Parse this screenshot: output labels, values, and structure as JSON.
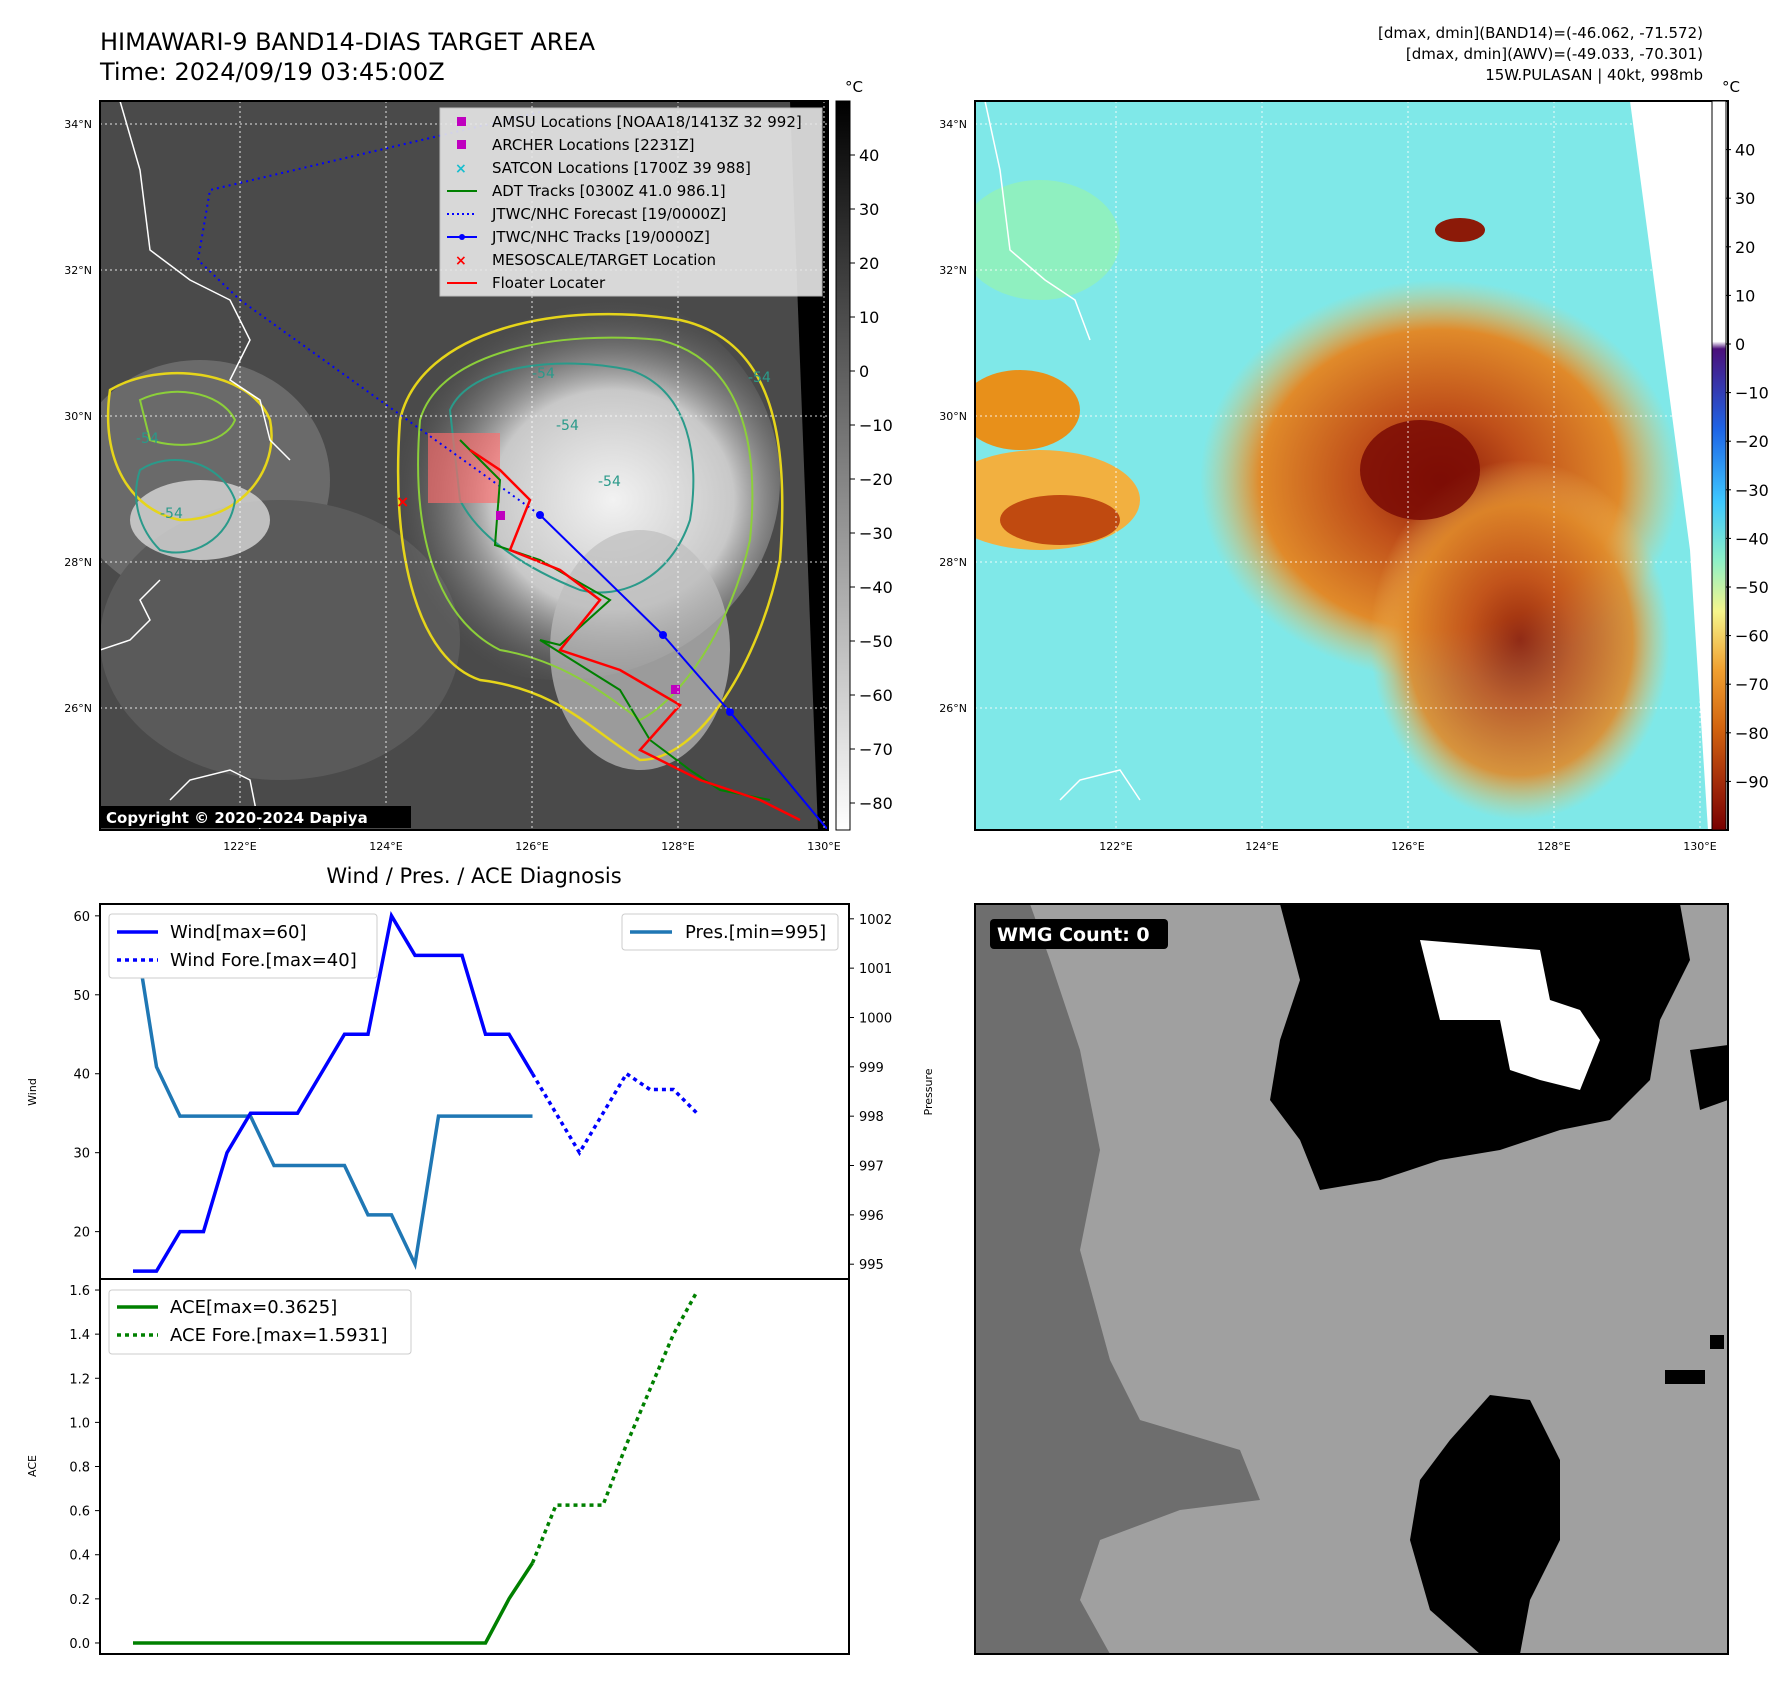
{
  "header": {
    "title": "HIMAWARI-9 BAND14-DIAS TARGET AREA",
    "time": "Time: 2024/09/19 03:45:00Z",
    "dmax_band14": "[dmax, dmin](BAND14)=(-46.062, -71.572)",
    "dmax_awv": "[dmax, dmin](AWV)=(-49.033, -70.301)",
    "storm": "15W.PULASAN | 40kt, 998mb"
  },
  "ir_panel": {
    "copyright": "Copyright © 2020-2024 Dapiya",
    "unit": "°C",
    "colorbar_ticks": [
      "40",
      "30",
      "20",
      "10",
      "0",
      "−10",
      "−20",
      "−30",
      "−40",
      "−50",
      "−60",
      "−70",
      "−80"
    ],
    "lat_labels": [
      "34°N",
      "32°N",
      "30°N",
      "28°N",
      "26°N"
    ],
    "lon_labels": [
      "122°E",
      "124°E",
      "126°E",
      "128°E",
      "130°E"
    ],
    "contour_labels": [
      "-54",
      "-54",
      "-54",
      "-54",
      "-54",
      "-54"
    ],
    "legend": [
      {
        "label": "AMSU Locations [NOAA18/1413Z 32 992]",
        "color": "#bf00bf",
        "marker": "square"
      },
      {
        "label": "ARCHER Locations [2231Z]",
        "color": "#bf00bf",
        "marker": "square"
      },
      {
        "label": "SATCON Locations [1700Z 39 988]",
        "color": "#17becf",
        "marker": "x"
      },
      {
        "label": "ADT Tracks [0300Z 41.0 986.1]",
        "color": "#008000",
        "marker": "line"
      },
      {
        "label": "JTWC/NHC Forecast [19/0000Z]",
        "color": "#0000ff",
        "marker": "dotted"
      },
      {
        "label": "JTWC/NHC Tracks [19/0000Z]",
        "color": "#0000ff",
        "marker": "line-dot"
      },
      {
        "label": "MESOSCALE/TARGET Location",
        "color": "#ff0000",
        "marker": "x"
      },
      {
        "label": "Floater Locater",
        "color": "#ff0000",
        "marker": "line"
      }
    ]
  },
  "awv_panel": {
    "unit": "°C",
    "colorbar_ticks": [
      "40",
      "30",
      "20",
      "10",
      "0",
      "−10",
      "−20",
      "−30",
      "−40",
      "−50",
      "−60",
      "−70",
      "−80",
      "−90"
    ],
    "lat_labels": [
      "34°N",
      "32°N",
      "30°N",
      "28°N",
      "26°N"
    ],
    "lon_labels": [
      "122°E",
      "124°E",
      "126°E",
      "128°E",
      "130°E"
    ]
  },
  "wmg_panel": {
    "badge": "WMG Count: 0"
  },
  "chart_data": [
    {
      "type": "line",
      "title": "Wind / Pres. / ACE Diagnosis",
      "ylabel": "Wind",
      "ylabel_right": "Pressure",
      "ylim": [
        14,
        61.5
      ],
      "ylim_right": [
        994.7,
        1002.3
      ],
      "yticks": [
        20,
        30,
        40,
        50,
        60
      ],
      "yticks_right": [
        995,
        996,
        997,
        998,
        999,
        1000,
        1001,
        1002
      ],
      "series": [
        {
          "name": "Wind[max=60]",
          "color": "#0000ff",
          "style": "solid",
          "values": [
            15,
            15,
            20,
            20,
            30,
            35,
            35,
            35,
            40,
            45,
            45,
            60,
            55,
            55,
            55,
            45,
            45,
            40
          ]
        },
        {
          "name": "Wind Fore.[max=40]",
          "color": "#0000ff",
          "style": "dotted",
          "values": [
            40,
            35,
            30,
            35,
            40,
            38,
            38,
            35
          ]
        },
        {
          "name": "Pres.[min=995]",
          "color": "#1f77b4",
          "style": "solid",
          "axis": "right",
          "values": [
            1002,
            999,
            998,
            998,
            998,
            998,
            997,
            997,
            997,
            997,
            996,
            996,
            995,
            998,
            998,
            998,
            998,
            998
          ]
        }
      ]
    },
    {
      "type": "line",
      "ylabel": "ACE",
      "ylim": [
        -0.05,
        1.65
      ],
      "yticks": [
        0.0,
        0.2,
        0.4,
        0.6,
        0.8,
        1.0,
        1.2,
        1.4,
        1.6
      ],
      "series": [
        {
          "name": "ACE[max=0.3625]",
          "color": "#008000",
          "style": "solid",
          "values": [
            0,
            0,
            0,
            0,
            0,
            0,
            0,
            0,
            0,
            0,
            0,
            0,
            0,
            0,
            0,
            0,
            0.2,
            0.3625
          ]
        },
        {
          "name": "ACE Fore.[max=1.5931]",
          "color": "#008000",
          "style": "dotted",
          "values": [
            0.3625,
            0.625,
            0.625,
            0.625,
            0.9,
            1.15,
            1.4,
            1.5931
          ]
        }
      ]
    }
  ]
}
